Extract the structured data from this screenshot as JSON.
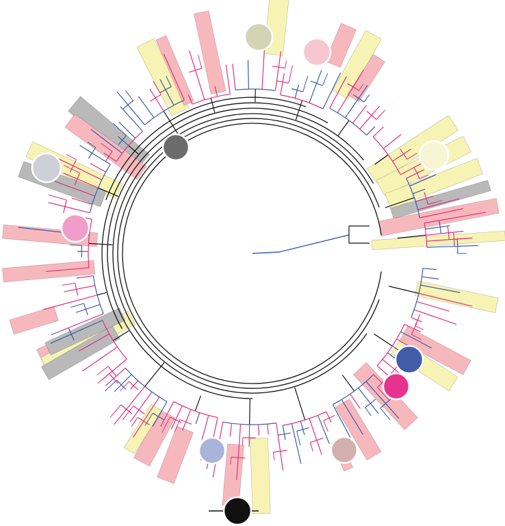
{
  "palette": {
    "branch_blue": "#3c5aa6",
    "branch_magenta": "#e0307d",
    "backbone": "#111111",
    "highlight_yellow": "#f7f3b4",
    "highlight_pink": "#f7b8bd",
    "highlight_gray": "#b9b9b9"
  },
  "clade_markers": [
    {
      "name": "clade-marker-olive",
      "color": "#d2d4b6"
    },
    {
      "name": "clade-marker-light-pink",
      "color": "#f7c7cf"
    },
    {
      "name": "clade-marker-cream",
      "color": "#f8f5d5"
    },
    {
      "name": "clade-marker-dark-gray",
      "color": "#6b6b6b"
    },
    {
      "name": "clade-marker-silver",
      "color": "#cdd0d6"
    },
    {
      "name": "clade-marker-orchid",
      "color": "#f09dc9"
    },
    {
      "name": "clade-marker-blue",
      "color": "#425ca9"
    },
    {
      "name": "clade-marker-magenta",
      "color": "#e6338d"
    },
    {
      "name": "clade-marker-taupe",
      "color": "#d2b0ae"
    },
    {
      "name": "clade-marker-periwinkle",
      "color": "#a8b4d9"
    },
    {
      "name": "clade-marker-black",
      "color": "#111111"
    }
  ]
}
